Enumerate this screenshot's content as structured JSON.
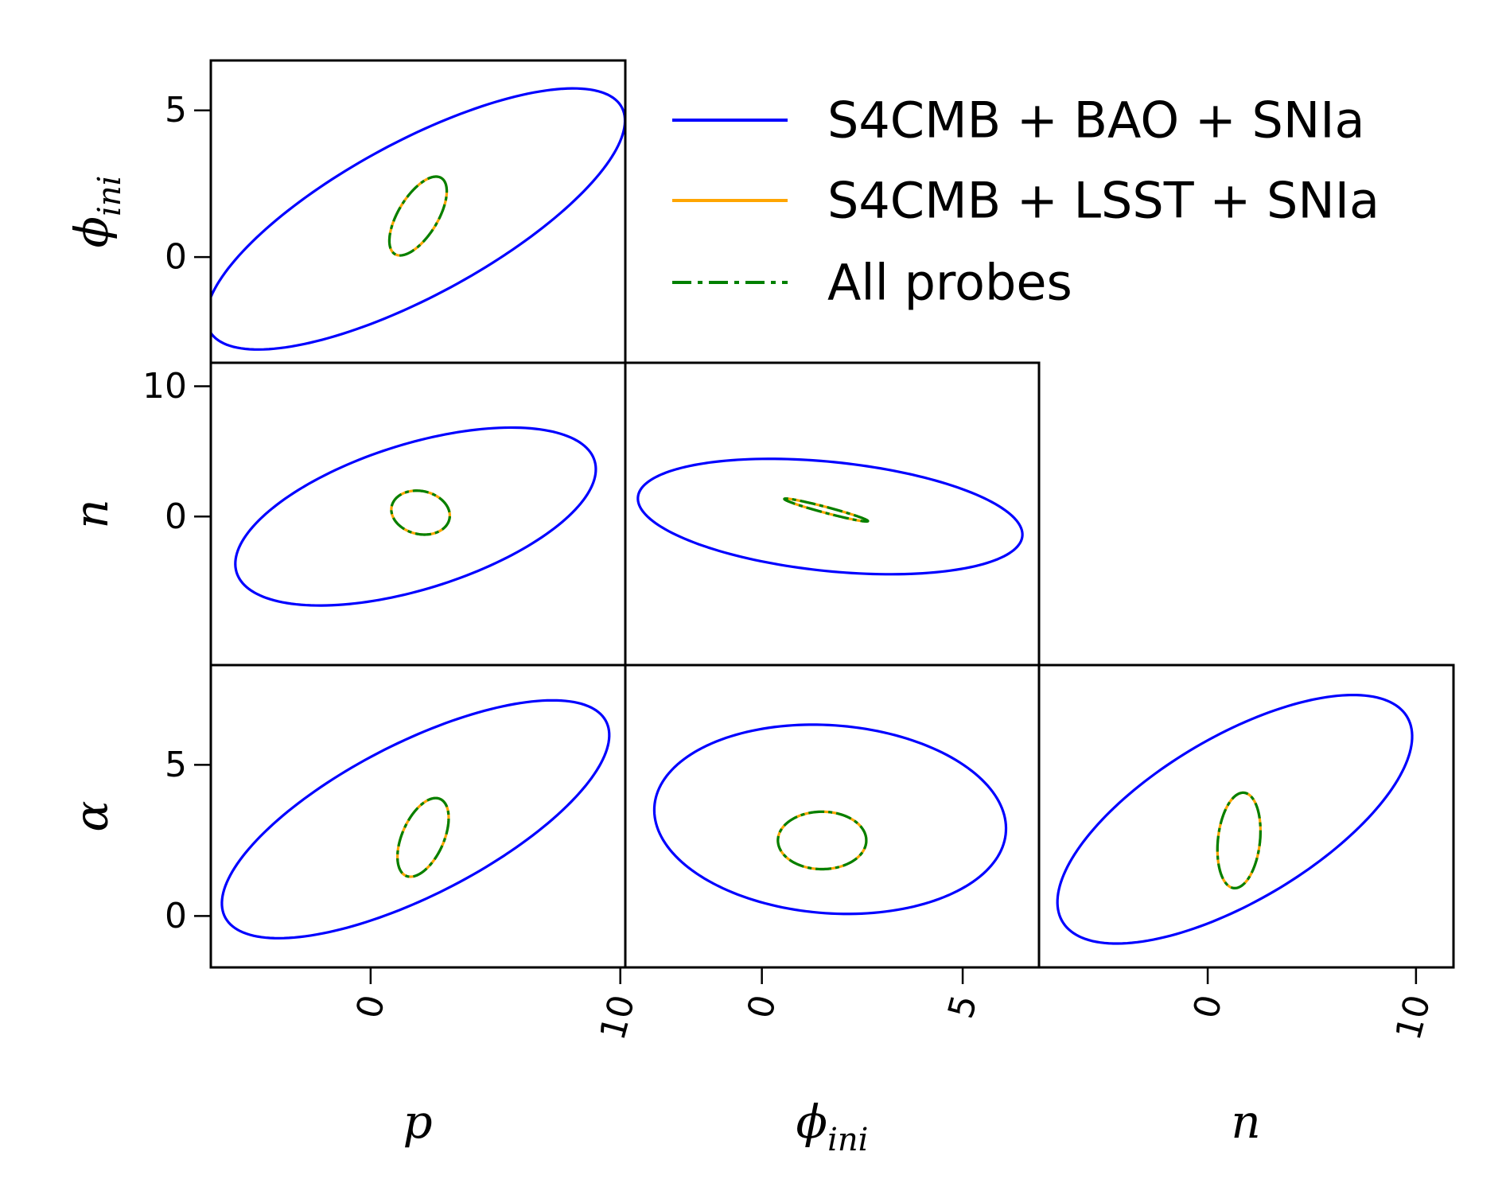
{
  "chart_data": {
    "type": "corner",
    "title": "",
    "colors": {
      "bao": "#0000ff",
      "lsst": "#ffa500",
      "all": "#008000"
    },
    "legend": {
      "placement": "top-right",
      "entries": [
        {
          "key": "bao",
          "label": "S4CMB + BAO + SNIa",
          "style": "solid"
        },
        {
          "key": "lsst",
          "label": "S4CMB + LSST + SNIa",
          "style": "solid"
        },
        {
          "key": "all",
          "label": "All probes",
          "style": "dashdot"
        }
      ]
    },
    "parameters": {
      "p": {
        "label": "p",
        "range": [
          -6.4,
          10.2
        ],
        "ticks": [
          0,
          10
        ]
      },
      "phi_ini": {
        "label": "ϕ",
        "sub": "ini",
        "ranges": {
          "x": [
            -3.4,
            6.9
          ],
          "y": [
            -3.6,
            6.7
          ]
        },
        "ticks": [
          0,
          5
        ]
      },
      "n": {
        "label": "n",
        "ranges": {
          "x": [
            -8.1,
            11.8
          ],
          "y": [
            -11.4,
            11.8
          ]
        },
        "ticks": [
          0,
          10
        ]
      },
      "alpha": {
        "label": "α",
        "range": [
          -1.7,
          8.3
        ],
        "ticks": [
          0,
          5
        ]
      }
    },
    "panels": [
      {
        "name": "phi-vs-p",
        "x": "p",
        "y": "phi_ini",
        "xlim": [
          -6.4,
          10.2
        ],
        "ylim": [
          -3.6,
          6.7
        ],
        "yticks": [
          0,
          5
        ],
        "xticks": [
          0,
          10
        ],
        "ylabel": true,
        "xlabel": false,
        "contours": {
          "bao": {
            "cx": 1.8,
            "cy": 1.3,
            "a": 9.1,
            "b": 2.7,
            "angle": 24
          },
          "lsst": {
            "cx": 1.9,
            "cy": 1.4,
            "a": 1.6,
            "b": 0.75,
            "angle": 52
          },
          "all": {
            "cx": 1.9,
            "cy": 1.4,
            "a": 1.6,
            "b": 0.75,
            "angle": 52
          }
        }
      },
      {
        "name": "n-vs-p",
        "x": "p",
        "y": "n",
        "xlim": [
          -6.4,
          10.2
        ],
        "ylim": [
          -11.4,
          11.8
        ],
        "yticks": [
          0,
          10
        ],
        "xticks": [
          0,
          10
        ],
        "ylabel": true,
        "xlabel": false,
        "contours": {
          "bao": {
            "cx": 1.8,
            "cy": 0.0,
            "a": 8.7,
            "b": 4.8,
            "angle": 42
          },
          "lsst": {
            "cx": 2.0,
            "cy": 0.3,
            "a": 1.15,
            "b": 1.7,
            "angle": 10
          },
          "all": {
            "cx": 2.0,
            "cy": 0.3,
            "a": 1.15,
            "b": 1.7,
            "angle": 10
          }
        }
      },
      {
        "name": "n-vs-phi",
        "x": "phi_ini",
        "y": "n",
        "xlim": [
          -3.4,
          6.9
        ],
        "ylim": [
          -11.4,
          11.8
        ],
        "yticks": [],
        "xticks": [
          0,
          5
        ],
        "ylabel": false,
        "xlabel": false,
        "contours": {
          "bao": {
            "cx": 1.7,
            "cy": 0.0,
            "a": 5.3,
            "b": 3.8,
            "angle": -38
          },
          "lsst": {
            "cx": 1.6,
            "cy": 0.5,
            "a": 1.35,
            "b": 0.18,
            "angle": -40
          },
          "all": {
            "cx": 1.6,
            "cy": 0.5,
            "a": 1.35,
            "b": 0.18,
            "angle": -40
          }
        }
      },
      {
        "name": "alpha-vs-p",
        "x": "p",
        "y": "alpha",
        "xlim": [
          -6.4,
          10.2
        ],
        "ylim": [
          -1.7,
          8.3
        ],
        "yticks": [
          0,
          5
        ],
        "xticks": [
          0,
          10
        ],
        "ylabel": true,
        "xlabel": true,
        "contours": {
          "bao": {
            "cx": 1.8,
            "cy": 3.2,
            "a": 8.3,
            "b": 2.6,
            "angle": 22
          },
          "lsst": {
            "cx": 2.1,
            "cy": 2.6,
            "a": 1.45,
            "b": 0.8,
            "angle": 58
          },
          "all": {
            "cx": 2.1,
            "cy": 2.6,
            "a": 1.45,
            "b": 0.8,
            "angle": 58
          }
        }
      },
      {
        "name": "alpha-vs-phi",
        "x": "phi_ini",
        "y": "alpha",
        "xlim": [
          -3.4,
          6.9
        ],
        "ylim": [
          -1.7,
          8.3
        ],
        "yticks": [],
        "xticks": [
          0,
          5
        ],
        "ylabel": false,
        "xlabel": true,
        "contours": {
          "bao": {
            "cx": 1.7,
            "cy": 3.2,
            "a": 4.4,
            "b": 3.1,
            "angle": -8
          },
          "lsst": {
            "cx": 1.5,
            "cy": 2.5,
            "a": 1.1,
            "b": 0.95,
            "angle": 0
          },
          "all": {
            "cx": 1.5,
            "cy": 2.5,
            "a": 1.1,
            "b": 0.95,
            "angle": 0
          }
        }
      },
      {
        "name": "alpha-vs-n",
        "x": "n",
        "y": "alpha",
        "xlim": [
          -8.1,
          11.8
        ],
        "ylim": [
          -1.7,
          8.3
        ],
        "yticks": [],
        "xticks": [
          0,
          10
        ],
        "ylabel": false,
        "xlabel": true,
        "contours": {
          "bao": {
            "cx": 1.3,
            "cy": 3.2,
            "a": 9.0,
            "b": 2.9,
            "angle": 20
          },
          "lsst": {
            "cx": 1.5,
            "cy": 2.5,
            "a": 1.6,
            "b": 1.0,
            "angle": 78
          },
          "all": {
            "cx": 1.5,
            "cy": 2.5,
            "a": 1.6,
            "b": 1.0,
            "angle": 78
          }
        }
      }
    ]
  }
}
